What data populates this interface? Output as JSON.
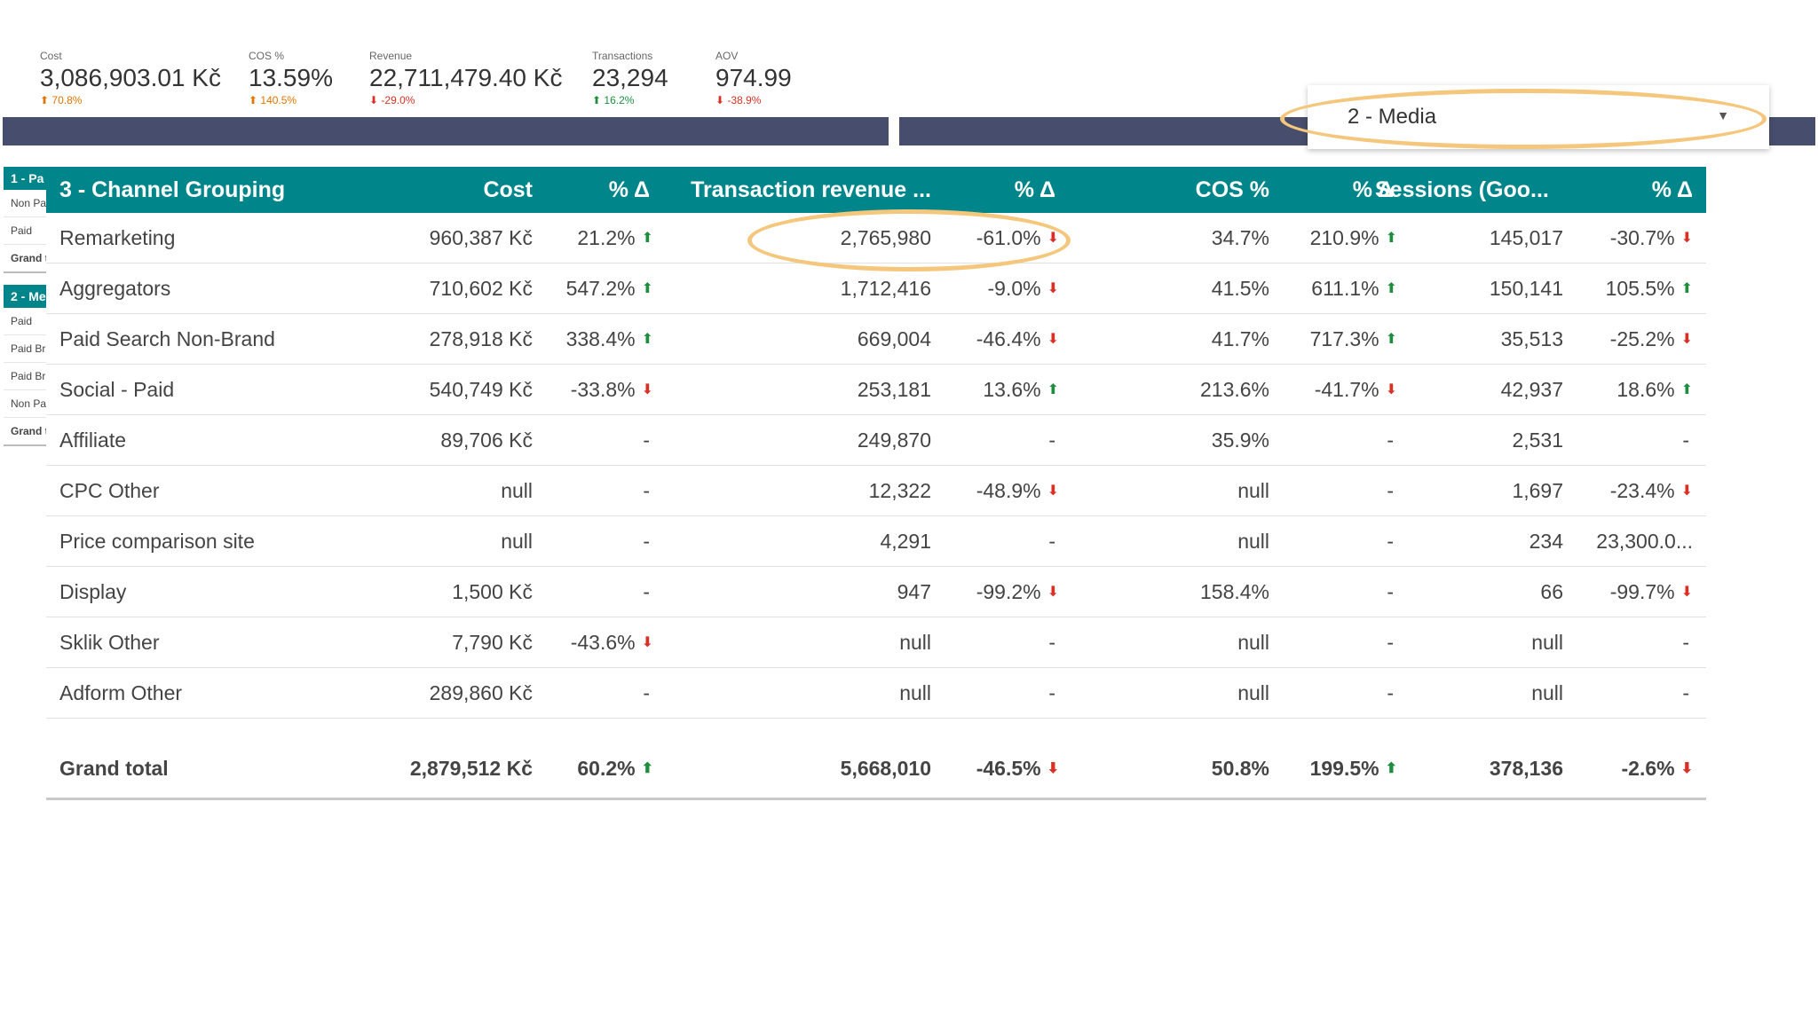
{
  "kpis": [
    {
      "label": "Cost",
      "value": "3,086,903.01 Kč",
      "change": "70.8%",
      "dir": "up",
      "color": "#e37400"
    },
    {
      "label": "COS %",
      "value": "13.59%",
      "change": "140.5%",
      "dir": "up",
      "color": "#e37400"
    },
    {
      "label": "Revenue",
      "value": "22,711,479.40 Kč",
      "change": "-29.0%",
      "dir": "down",
      "color": "#d93025"
    },
    {
      "label": "Transactions",
      "value": "23,294",
      "change": "16.2%",
      "dir": "up",
      "color": "#1e8e3e"
    },
    {
      "label": "AOV",
      "value": "974.99",
      "change": "-38.9%",
      "dir": "down",
      "color": "#d93025"
    }
  ],
  "filter": {
    "selected": "2 - Media"
  },
  "mini_table_1": {
    "header": "1 - Pa",
    "rows": [
      "Non Pa",
      "Paid",
      "Grand t"
    ]
  },
  "mini_table_2": {
    "header": "2 - Me",
    "rows": [
      "Paid",
      "Paid Br",
      "Paid Br",
      "Non Pa",
      "Grand t"
    ]
  },
  "table": {
    "columns": [
      "3 - Channel Grouping",
      "Cost",
      "% Δ",
      "Transaction revenue ...",
      "% Δ",
      "COS %",
      "% Δ",
      "Sessions (Goo...",
      "% Δ"
    ],
    "rows": [
      {
        "name": "Remarketing",
        "cost": "960,387 Kč",
        "cost_d": "21.2%",
        "cost_a": "up",
        "rev": "2,765,980",
        "rev_d": "-61.0%",
        "rev_a": "dn",
        "cos": "34.7%",
        "cos_d": "210.9%",
        "cos_a": "up",
        "ses": "145,017",
        "ses_d": "-30.7%",
        "ses_a": "dn"
      },
      {
        "name": "Aggregators",
        "cost": "710,602 Kč",
        "cost_d": "547.2%",
        "cost_a": "up",
        "rev": "1,712,416",
        "rev_d": "-9.0%",
        "rev_a": "dn",
        "cos": "41.5%",
        "cos_d": "611.1%",
        "cos_a": "up",
        "ses": "150,141",
        "ses_d": "105.5%",
        "ses_a": "up"
      },
      {
        "name": "Paid Search Non-Brand",
        "cost": "278,918 Kč",
        "cost_d": "338.4%",
        "cost_a": "up",
        "rev": "669,004",
        "rev_d": "-46.4%",
        "rev_a": "dn",
        "cos": "41.7%",
        "cos_d": "717.3%",
        "cos_a": "up",
        "ses": "35,513",
        "ses_d": "-25.2%",
        "ses_a": "dn"
      },
      {
        "name": "Social - Paid",
        "cost": "540,749 Kč",
        "cost_d": "-33.8%",
        "cost_a": "dn",
        "rev": "253,181",
        "rev_d": "13.6%",
        "rev_a": "up",
        "cos": "213.6%",
        "cos_d": "-41.7%",
        "cos_a": "dn",
        "ses": "42,937",
        "ses_d": "18.6%",
        "ses_a": "up"
      },
      {
        "name": "Affiliate",
        "cost": "89,706 Kč",
        "cost_d": "-",
        "cost_a": "",
        "rev": "249,870",
        "rev_d": "-",
        "rev_a": "",
        "cos": "35.9%",
        "cos_d": "-",
        "cos_a": "",
        "ses": "2,531",
        "ses_d": "-",
        "ses_a": ""
      },
      {
        "name": "CPC Other",
        "cost": "null",
        "cost_d": "-",
        "cost_a": "",
        "rev": "12,322",
        "rev_d": "-48.9%",
        "rev_a": "dn",
        "cos": "null",
        "cos_d": "-",
        "cos_a": "",
        "ses": "1,697",
        "ses_d": "-23.4%",
        "ses_a": "dn"
      },
      {
        "name": "Price comparison site",
        "cost": "null",
        "cost_d": "-",
        "cost_a": "",
        "rev": "4,291",
        "rev_d": "-",
        "rev_a": "",
        "cos": "null",
        "cos_d": "-",
        "cos_a": "",
        "ses": "234",
        "ses_d": "23,300.0...",
        "ses_a": ""
      },
      {
        "name": "Display",
        "cost": "1,500 Kč",
        "cost_d": "-",
        "cost_a": "",
        "rev": "947",
        "rev_d": "-99.2%",
        "rev_a": "dn",
        "cos": "158.4%",
        "cos_d": "-",
        "cos_a": "",
        "ses": "66",
        "ses_d": "-99.7%",
        "ses_a": "dn"
      },
      {
        "name": "Sklik Other",
        "cost": "7,790 Kč",
        "cost_d": "-43.6%",
        "cost_a": "dn",
        "rev": "null",
        "rev_d": "-",
        "rev_a": "",
        "cos": "null",
        "cos_d": "-",
        "cos_a": "",
        "ses": "null",
        "ses_d": "-",
        "ses_a": ""
      },
      {
        "name": "Adform Other",
        "cost": "289,860 Kč",
        "cost_d": "-",
        "cost_a": "",
        "rev": "null",
        "rev_d": "-",
        "rev_a": "",
        "cos": "null",
        "cos_d": "-",
        "cos_a": "",
        "ses": "null",
        "ses_d": "-",
        "ses_a": ""
      }
    ],
    "total": {
      "name": "Grand total",
      "cost": "2,879,512 Kč",
      "cost_d": "60.2%",
      "cost_a": "up",
      "rev": "5,668,010",
      "rev_d": "-46.5%",
      "rev_a": "dn",
      "cos": "50.8%",
      "cos_d": "199.5%",
      "cos_a": "up",
      "ses": "378,136",
      "ses_d": "-2.6%",
      "ses_a": "dn"
    }
  }
}
